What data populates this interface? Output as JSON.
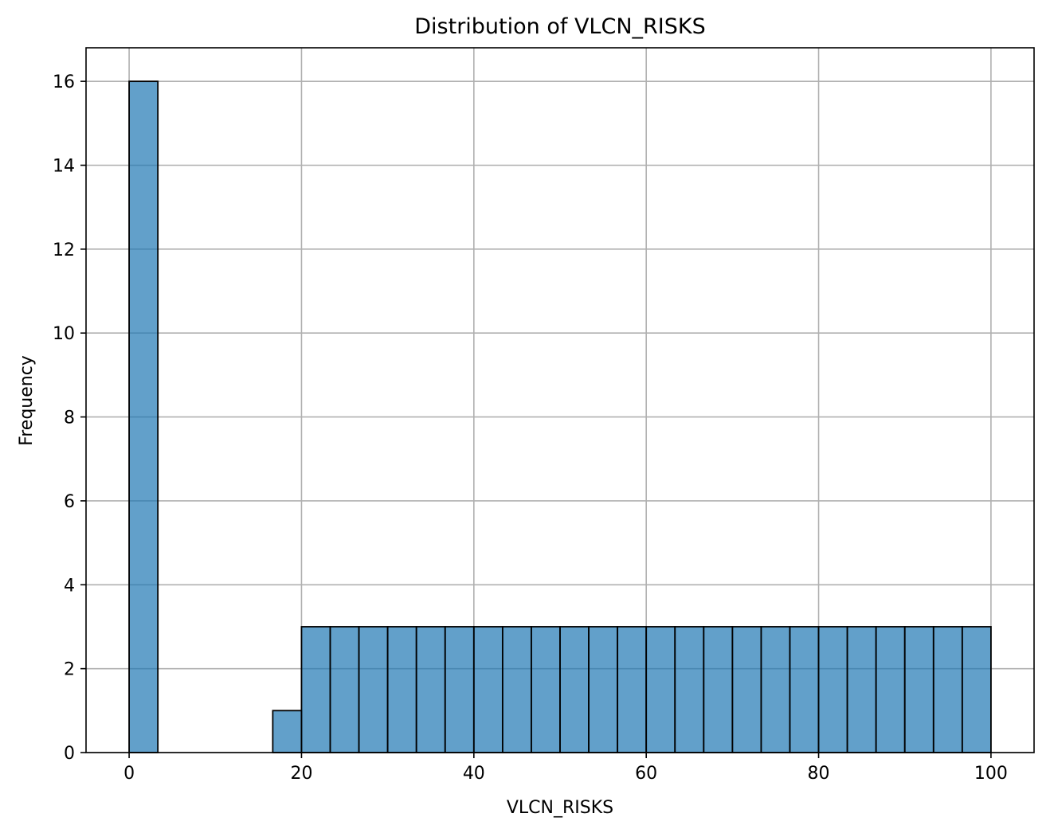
{
  "chart_data": {
    "type": "bar",
    "title": "Distribution of VLCN_RISKS",
    "xlabel": "VLCN_RISKS",
    "ylabel": "Frequency",
    "xlim": [
      -5,
      105
    ],
    "ylim": [
      0,
      16.8
    ],
    "xticks": [
      0,
      20,
      40,
      60,
      80,
      100
    ],
    "yticks": [
      0,
      2,
      4,
      6,
      8,
      10,
      12,
      14,
      16
    ],
    "grid": true,
    "bar_color": "#1f77b4",
    "bar_opacity": 0.7,
    "edge_color": "#000000",
    "bin_width": 3.3333,
    "bins": [
      {
        "x0": 0.0,
        "x1": 3.3333,
        "count": 16
      },
      {
        "x0": 16.6667,
        "x1": 20.0,
        "count": 1
      },
      {
        "x0": 20.0,
        "x1": 23.3333,
        "count": 3
      },
      {
        "x0": 23.3333,
        "x1": 26.6667,
        "count": 3
      },
      {
        "x0": 26.6667,
        "x1": 30.0,
        "count": 3
      },
      {
        "x0": 30.0,
        "x1": 33.3333,
        "count": 3
      },
      {
        "x0": 33.3333,
        "x1": 36.6667,
        "count": 3
      },
      {
        "x0": 36.6667,
        "x1": 40.0,
        "count": 3
      },
      {
        "x0": 40.0,
        "x1": 43.3333,
        "count": 3
      },
      {
        "x0": 43.3333,
        "x1": 46.6667,
        "count": 3
      },
      {
        "x0": 46.6667,
        "x1": 50.0,
        "count": 3
      },
      {
        "x0": 50.0,
        "x1": 53.3333,
        "count": 3
      },
      {
        "x0": 53.3333,
        "x1": 56.6667,
        "count": 3
      },
      {
        "x0": 56.6667,
        "x1": 60.0,
        "count": 3
      },
      {
        "x0": 60.0,
        "x1": 63.3333,
        "count": 3
      },
      {
        "x0": 63.3333,
        "x1": 66.6667,
        "count": 3
      },
      {
        "x0": 66.6667,
        "x1": 70.0,
        "count": 3
      },
      {
        "x0": 70.0,
        "x1": 73.3333,
        "count": 3
      },
      {
        "x0": 73.3333,
        "x1": 76.6667,
        "count": 3
      },
      {
        "x0": 76.6667,
        "x1": 80.0,
        "count": 3
      },
      {
        "x0": 80.0,
        "x1": 83.3333,
        "count": 3
      },
      {
        "x0": 83.3333,
        "x1": 86.6667,
        "count": 3
      },
      {
        "x0": 86.6667,
        "x1": 90.0,
        "count": 3
      },
      {
        "x0": 90.0,
        "x1": 93.3333,
        "count": 3
      },
      {
        "x0": 93.3333,
        "x1": 96.6667,
        "count": 3
      },
      {
        "x0": 96.6667,
        "x1": 100.0,
        "count": 3
      }
    ]
  }
}
